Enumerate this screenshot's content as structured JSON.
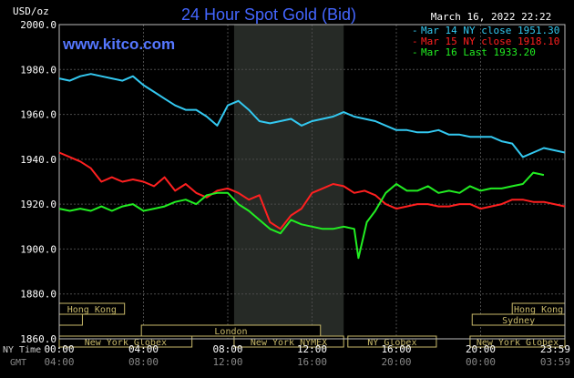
{
  "chart_data": {
    "type": "line",
    "title": "24 Hour Spot Gold (Bid)",
    "ylabel": "USD/oz",
    "date": "March 16, 2022 22:22",
    "brand": "www.kitco.com",
    "ylim": [
      1860,
      2000
    ],
    "yticks": [
      "2000.0",
      "1980.0",
      "1960.0",
      "1940.0",
      "1920.0",
      "1900.0",
      "1880.0",
      "1860.0"
    ],
    "xlim_hours": [
      0,
      24
    ],
    "xticks_ny": [
      "00:00",
      "04:00",
      "08:00",
      "12:00",
      "16:00",
      "20:00",
      "23:59"
    ],
    "xticks_gmt": [
      "04:00",
      "08:00",
      "12:00",
      "16:00",
      "20:00",
      "00:00",
      "03:59"
    ],
    "xlabel_ny": "NY Time",
    "xlabel_gmt": "GMT",
    "highlight_hours": [
      8.3,
      13.5
    ],
    "legend": [
      {
        "label": "Mar 14 NY close 1951.30",
        "color": "#33c8f0"
      },
      {
        "label": "Mar 15 NY close 1918.10",
        "color": "#ff2020"
      },
      {
        "label": "Mar 16 Last 1933.20",
        "color": "#22ee22"
      }
    ],
    "series": [
      {
        "name": "Mar 14 NY close 1951.30",
        "color": "#33c8f0",
        "x": [
          0,
          0.5,
          1,
          1.5,
          2,
          2.5,
          3,
          3.5,
          4,
          4.5,
          5,
          5.5,
          6,
          6.5,
          7,
          7.5,
          8,
          8.5,
          9,
          9.5,
          10,
          10.5,
          11,
          11.5,
          12,
          12.5,
          13,
          13.5,
          14,
          14.5,
          15,
          15.5,
          16,
          16.5,
          17,
          17.5,
          18,
          18.5,
          19,
          19.5,
          20,
          20.5,
          21,
          21.5,
          22,
          22.5,
          23,
          23.5,
          24
        ],
        "y": [
          1976,
          1975,
          1977,
          1978,
          1977,
          1976,
          1975,
          1977,
          1973,
          1970,
          1967,
          1964,
          1962,
          1962,
          1959,
          1955,
          1964,
          1966,
          1962,
          1957,
          1956,
          1957,
          1958,
          1955,
          1957,
          1958,
          1959,
          1961,
          1959,
          1958,
          1957,
          1955,
          1953,
          1953,
          1952,
          1952,
          1953,
          1951,
          1951,
          1950,
          1950,
          1950,
          1948,
          1947,
          1941,
          1943,
          1945,
          1944,
          1943
        ]
      },
      {
        "name": "Mar 15 NY close 1918.10",
        "color": "#ff2020",
        "x": [
          0,
          0.5,
          1,
          1.5,
          2,
          2.5,
          3,
          3.5,
          4,
          4.5,
          5,
          5.5,
          6,
          6.5,
          7,
          7.5,
          8,
          8.5,
          9,
          9.5,
          10,
          10.5,
          11,
          11.5,
          12,
          12.5,
          13,
          13.5,
          14,
          14.5,
          15,
          15.5,
          16,
          16.5,
          17,
          17.5,
          18,
          18.5,
          19,
          19.5,
          20,
          20.5,
          21,
          21.5,
          22,
          22.5,
          23,
          23.5,
          24
        ],
        "y": [
          1943,
          1941,
          1939,
          1936,
          1930,
          1932,
          1930,
          1931,
          1930,
          1928,
          1932,
          1926,
          1929,
          1925,
          1923,
          1926,
          1927,
          1925,
          1922,
          1924,
          1912,
          1909,
          1915,
          1918,
          1925,
          1927,
          1929,
          1928,
          1925,
          1926,
          1924,
          1920,
          1918,
          1919,
          1920,
          1920,
          1919,
          1919,
          1920,
          1920,
          1918,
          1919,
          1920,
          1922,
          1922,
          1921,
          1921,
          1920,
          1919
        ]
      },
      {
        "name": "Mar 16 Last 1933.20",
        "color": "#22ee22",
        "x": [
          0,
          0.5,
          1,
          1.5,
          2,
          2.5,
          3,
          3.5,
          4,
          4.5,
          5,
          5.5,
          6,
          6.5,
          7,
          7.5,
          8,
          8.5,
          9,
          9.5,
          10,
          10.5,
          11,
          11.5,
          12,
          12.5,
          13,
          13.5,
          14,
          14.2,
          14.4,
          14.6,
          15,
          15.5,
          16,
          16.5,
          17,
          17.5,
          18,
          18.5,
          19,
          19.5,
          20,
          20.5,
          21,
          21.5,
          22,
          22.5,
          23
        ],
        "y": [
          1918,
          1917,
          1918,
          1917,
          1919,
          1917,
          1919,
          1920,
          1917,
          1918,
          1919,
          1921,
          1922,
          1920,
          1924,
          1925,
          1925,
          1920,
          1917,
          1913,
          1909,
          1907,
          1913,
          1911,
          1910,
          1909,
          1909,
          1910,
          1909,
          1896,
          1904,
          1912,
          1917,
          1925,
          1929,
          1926,
          1926,
          1928,
          1925,
          1926,
          1925,
          1928,
          1926,
          1927,
          1927,
          1928,
          1929,
          1934,
          1933
        ]
      }
    ],
    "markets": [
      {
        "label": "Hong Kong",
        "start": 0,
        "end": 3.1,
        "row": 0
      },
      {
        "label": "Hong Kong",
        "start": 21.5,
        "end": 24,
        "row": 0
      },
      {
        "label": "Sydney",
        "start": 0,
        "end": 1.1,
        "row": 1
      },
      {
        "label": "Sydney",
        "start": 19.6,
        "end": 24,
        "row": 1
      },
      {
        "label": "London",
        "start": 3.9,
        "end": 12.4,
        "row": 2
      },
      {
        "label": "New York Globex",
        "start": 0,
        "end": 6.3,
        "row": 3
      },
      {
        "label": "New York NYMEX",
        "start": 8.3,
        "end": 13.5,
        "row": 3
      },
      {
        "label": "NY Globex",
        "start": 13.7,
        "end": 17.9,
        "row": 3
      },
      {
        "label": "New York Globex",
        "start": 19.5,
        "end": 24,
        "row": 3
      }
    ]
  }
}
